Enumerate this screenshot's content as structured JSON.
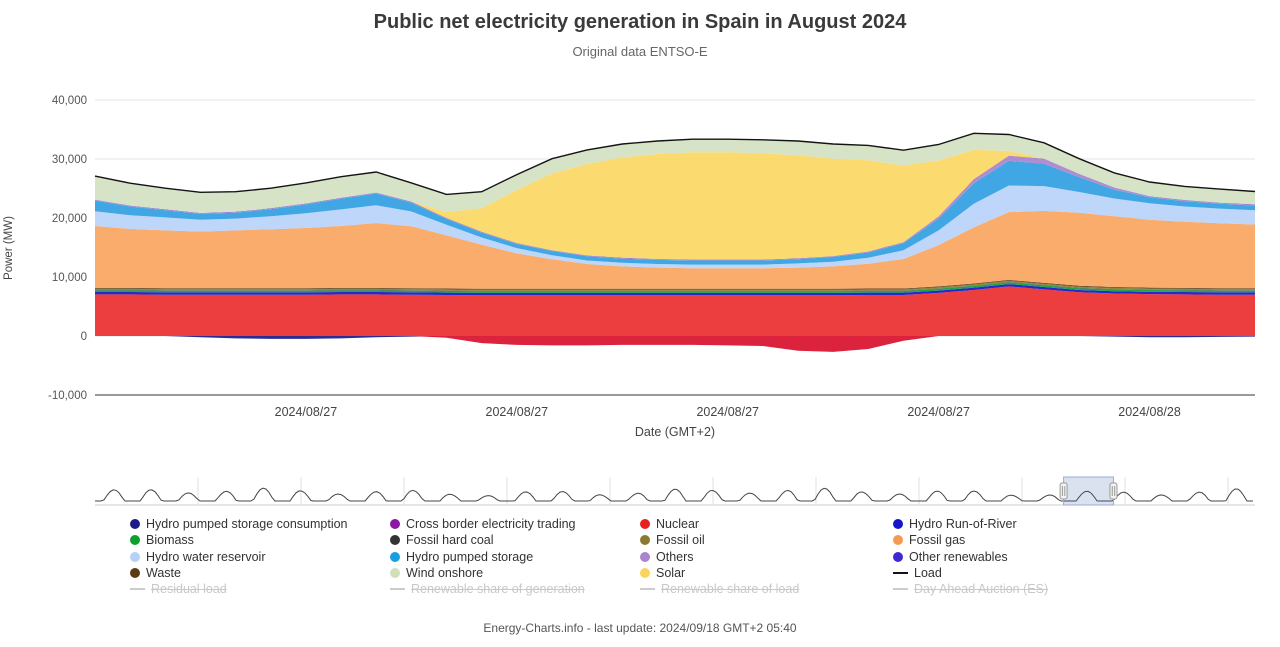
{
  "footer": "Energy-Charts.info - last update: 2024/09/18 GMT+2 05:40",
  "chart_data": {
    "type": "area",
    "stacked": true,
    "title": "Public net electricity generation in Spain in August 2024",
    "subtitle": "Original data ENTSO-E",
    "ylabel": "Power (MW)",
    "xlabel": "Date (GMT+2)",
    "unit": "MW",
    "ylim": [
      -10000,
      40000
    ],
    "y_ticks": [
      -10000,
      0,
      10000,
      20000,
      30000,
      40000
    ],
    "grid": true,
    "legend_position": "bottom",
    "x_ticks": [
      {
        "hour": 6,
        "label": "2024/08/27"
      },
      {
        "hour": 12,
        "label": "2024/08/27"
      },
      {
        "hour": 18,
        "label": "2024/08/27"
      },
      {
        "hour": 24,
        "label": "2024/08/27"
      },
      {
        "hour": 30,
        "label": "2024/08/28"
      }
    ],
    "series": [
      {
        "name": "Hydro pumped storage consumption",
        "color": "#1a1a8c",
        "values": [
          0,
          0,
          0,
          -200,
          -400,
          -500,
          -500,
          -400,
          -200,
          -100,
          0,
          0,
          0,
          0,
          0,
          0,
          0,
          0,
          0,
          0,
          0,
          0,
          0,
          0,
          0,
          0,
          0,
          0,
          0,
          -100,
          -200,
          -200,
          -150,
          -100
        ]
      },
      {
        "name": "Cross border electricity trading",
        "color": "#d8102e",
        "values": [
          0,
          0,
          0,
          0,
          0,
          0,
          0,
          0,
          0,
          0,
          -300,
          -1200,
          -1500,
          -1600,
          -1600,
          -1500,
          -1500,
          -1500,
          -1600,
          -1700,
          -2500,
          -2700,
          -2200,
          -800,
          0,
          0,
          0,
          0,
          0,
          0,
          0,
          0,
          0,
          0
        ]
      },
      {
        "name": "Nuclear",
        "color": "#ea2e2e",
        "values": [
          7050,
          7050,
          7000,
          7000,
          7000,
          7000,
          7000,
          7050,
          7050,
          7000,
          6950,
          6900,
          6900,
          6900,
          6900,
          6900,
          6900,
          6900,
          6900,
          6900,
          6900,
          6900,
          6950,
          6950,
          7300,
          7800,
          8400,
          7900,
          7400,
          7200,
          7100,
          7050,
          7000,
          7000
        ]
      },
      {
        "name": "Hydro Run-of-River",
        "color": "#1616c8",
        "values": [
          400,
          400,
          400,
          400,
          400,
          400,
          400,
          400,
          400,
          400,
          400,
          400,
          400,
          400,
          400,
          400,
          400,
          400,
          400,
          400,
          400,
          400,
          400,
          400,
          400,
          400,
          400,
          400,
          400,
          400,
          400,
          400,
          400,
          400
        ]
      },
      {
        "name": "Biomass",
        "color": "#0f9a3e",
        "values": [
          300,
          300,
          300,
          300,
          300,
          300,
          300,
          300,
          300,
          300,
          300,
          300,
          300,
          300,
          300,
          300,
          300,
          300,
          300,
          300,
          300,
          300,
          300,
          300,
          300,
          300,
          300,
          300,
          300,
          300,
          300,
          300,
          300,
          300
        ]
      },
      {
        "name": "Fossil hard coal",
        "color": "#333333",
        "values": [
          50,
          50,
          50,
          50,
          50,
          50,
          50,
          50,
          50,
          50,
          50,
          50,
          50,
          50,
          50,
          50,
          50,
          50,
          50,
          50,
          50,
          50,
          50,
          50,
          50,
          50,
          50,
          50,
          50,
          50,
          50,
          50,
          50,
          50
        ]
      },
      {
        "name": "Fossil oil",
        "color": "#8a7a30",
        "values": [
          200,
          200,
          200,
          200,
          200,
          200,
          200,
          200,
          200,
          200,
          200,
          200,
          200,
          200,
          200,
          200,
          200,
          200,
          200,
          200,
          200,
          200,
          200,
          200,
          200,
          200,
          200,
          200,
          200,
          200,
          200,
          200,
          200,
          200
        ]
      },
      {
        "name": "Waste",
        "color": "#5c3a12",
        "values": [
          150,
          150,
          150,
          150,
          150,
          150,
          150,
          150,
          150,
          150,
          150,
          150,
          150,
          150,
          150,
          150,
          150,
          150,
          150,
          150,
          150,
          150,
          150,
          150,
          150,
          150,
          150,
          150,
          150,
          150,
          150,
          150,
          150,
          150
        ]
      },
      {
        "name": "Fossil gas",
        "color": "#f8a55f",
        "values": [
          10500,
          10000,
          9800,
          9600,
          9800,
          10000,
          10200,
          10500,
          11000,
          10500,
          9000,
          7500,
          6000,
          5000,
          4200,
          3800,
          3600,
          3500,
          3500,
          3500,
          3600,
          3800,
          4200,
          5000,
          7000,
          9500,
          11500,
          12200,
          12400,
          12000,
          11500,
          11200,
          11000,
          10800
        ]
      },
      {
        "name": "Hydro water reservoir",
        "color": "#b9d2f8",
        "values": [
          2500,
          2300,
          2200,
          2000,
          2000,
          2200,
          2500,
          2800,
          3000,
          2500,
          1800,
          1200,
          900,
          700,
          600,
          600,
          600,
          600,
          600,
          600,
          700,
          800,
          1000,
          1500,
          2500,
          4000,
          4500,
          4200,
          3500,
          3000,
          2800,
          2600,
          2500,
          2400
        ]
      },
      {
        "name": "Hydro pumped storage",
        "color": "#30a0e2",
        "values": [
          1800,
          1500,
          1200,
          1000,
          1000,
          1200,
          1500,
          1800,
          2000,
          1500,
          1000,
          800,
          700,
          700,
          700,
          700,
          700,
          700,
          700,
          700,
          700,
          800,
          900,
          1200,
          2000,
          3500,
          4200,
          3800,
          2500,
          1500,
          1000,
          900,
          800,
          800
        ]
      },
      {
        "name": "Others",
        "color": "#a983cc",
        "values": [
          100,
          100,
          100,
          100,
          100,
          100,
          100,
          100,
          100,
          100,
          100,
          100,
          100,
          100,
          100,
          100,
          100,
          100,
          100,
          100,
          100,
          100,
          100,
          100,
          300,
          600,
          800,
          800,
          500,
          300,
          150,
          150,
          150,
          150
        ]
      },
      {
        "name": "Other renewables",
        "color": "#3d2bd1",
        "values": [
          50,
          50,
          50,
          50,
          50,
          50,
          50,
          50,
          50,
          50,
          50,
          50,
          50,
          50,
          50,
          50,
          50,
          50,
          50,
          50,
          50,
          50,
          50,
          50,
          50,
          50,
          50,
          50,
          50,
          50,
          50,
          50,
          50,
          50
        ]
      },
      {
        "name": "Solar",
        "color": "#fbd763",
        "values": [
          0,
          0,
          0,
          0,
          0,
          0,
          0,
          0,
          0,
          0,
          1000,
          4000,
          9000,
          13000,
          15500,
          17000,
          17800,
          18200,
          18200,
          18000,
          17500,
          16500,
          15500,
          13000,
          9500,
          5000,
          800,
          0,
          0,
          0,
          0,
          0,
          0,
          0
        ]
      },
      {
        "name": "Wind onshore",
        "color": "#d3e1c2",
        "values": [
          4000,
          3800,
          3600,
          3500,
          3400,
          3400,
          3500,
          3600,
          3500,
          3200,
          3000,
          2800,
          2600,
          2500,
          2400,
          2300,
          2200,
          2200,
          2200,
          2300,
          2400,
          2500,
          2500,
          2600,
          2700,
          2800,
          2800,
          2700,
          2600,
          2500,
          2400,
          2300,
          2300,
          2200
        ]
      }
    ],
    "load": {
      "name": "Load",
      "color": "#141414",
      "values": [
        27100,
        25900,
        25050,
        24350,
        24450,
        25050,
        25950,
        27000,
        27800,
        25950,
        24000,
        24450,
        27350,
        30050,
        31550,
        32550,
        33050,
        33350,
        33350,
        33250,
        33050,
        32550,
        32300,
        31500,
        32450,
        34350,
        34150,
        32750,
        30050,
        27650,
        26100,
        25350,
        24900,
        24500
      ]
    }
  },
  "navigator": {
    "selection_start": 0.835,
    "selection_end": 0.878,
    "days_shown": 31
  },
  "legend": {
    "items": [
      {
        "label": "Hydro pumped storage consumption",
        "color": "#1a1a8c",
        "marker": "circle",
        "disabled": false
      },
      {
        "label": "Cross border electricity trading",
        "color": "#8b17a3",
        "marker": "circle",
        "disabled": false
      },
      {
        "label": "Nuclear",
        "color": "#e82020",
        "marker": "circle",
        "disabled": false
      },
      {
        "label": "Hydro Run-of-River",
        "color": "#1616c8",
        "marker": "circle",
        "disabled": false
      },
      {
        "label": "Biomass",
        "color": "#0aa12d",
        "marker": "circle",
        "disabled": false
      },
      {
        "label": "Fossil hard coal",
        "color": "#333333",
        "marker": "circle",
        "disabled": false
      },
      {
        "label": "Fossil oil",
        "color": "#8a7a30",
        "marker": "circle",
        "disabled": false
      },
      {
        "label": "Fossil gas",
        "color": "#f59b51",
        "marker": "circle",
        "disabled": false
      },
      {
        "label": "Hydro water reservoir",
        "color": "#b6d0f7",
        "marker": "circle",
        "disabled": false
      },
      {
        "label": "Hydro pumped storage",
        "color": "#189ee0",
        "marker": "circle",
        "disabled": false
      },
      {
        "label": "Others",
        "color": "#a983cc",
        "marker": "circle",
        "disabled": false
      },
      {
        "label": "Other renewables",
        "color": "#3d2bd1",
        "marker": "circle",
        "disabled": false
      },
      {
        "label": "Waste",
        "color": "#5c3a12",
        "marker": "circle",
        "disabled": false
      },
      {
        "label": "Wind onshore",
        "color": "#cfe0ba",
        "marker": "circle",
        "disabled": false
      },
      {
        "label": "Solar",
        "color": "#fbd45c",
        "marker": "circle",
        "disabled": false
      },
      {
        "label": "Load",
        "color": "#141414",
        "marker": "line",
        "disabled": false
      },
      {
        "label": "Residual load",
        "color": "#cccccc",
        "marker": "line",
        "disabled": true
      },
      {
        "label": "Renewable share of generation",
        "color": "#cccccc",
        "marker": "line",
        "disabled": true
      },
      {
        "label": "Renewable share of load",
        "color": "#cccccc",
        "marker": "line",
        "disabled": true
      },
      {
        "label": "Day Ahead Auction (ES)",
        "color": "#cccccc",
        "marker": "line",
        "disabled": true
      }
    ]
  }
}
